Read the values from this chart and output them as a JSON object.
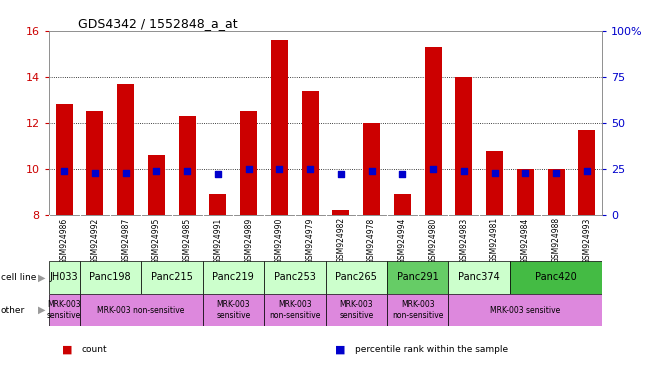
{
  "title": "GDS4342 / 1552848_a_at",
  "samples": [
    "GSM924986",
    "GSM924992",
    "GSM924987",
    "GSM924995",
    "GSM924985",
    "GSM924991",
    "GSM924989",
    "GSM924990",
    "GSM924979",
    "GSM924982",
    "GSM924978",
    "GSM924994",
    "GSM924980",
    "GSM924983",
    "GSM924981",
    "GSM924984",
    "GSM924988",
    "GSM924993"
  ],
  "counts": [
    12.8,
    12.5,
    13.7,
    10.6,
    12.3,
    8.9,
    12.5,
    15.6,
    13.4,
    8.2,
    12.0,
    8.9,
    15.3,
    14.0,
    10.8,
    10.0,
    10.0,
    11.7
  ],
  "percentiles": [
    24,
    23,
    23,
    24,
    24,
    22,
    25,
    25,
    25,
    22,
    24,
    22,
    25,
    24,
    23,
    23,
    23,
    24
  ],
  "bar_bottom": 8.0,
  "ylim_left": [
    8,
    16
  ],
  "ylim_right": [
    0,
    100
  ],
  "yticks_left": [
    8,
    10,
    12,
    14,
    16
  ],
  "yticks_right": [
    0,
    25,
    50,
    75,
    100
  ],
  "ytick_right_labels": [
    "0",
    "25",
    "50",
    "75",
    "100%"
  ],
  "bar_color": "#cc0000",
  "percentile_color": "#0000cc",
  "cell_lines": [
    {
      "name": "JH033",
      "start": 0,
      "end": 1,
      "color": "#ccffcc"
    },
    {
      "name": "Panc198",
      "start": 1,
      "end": 3,
      "color": "#ccffcc"
    },
    {
      "name": "Panc215",
      "start": 3,
      "end": 5,
      "color": "#ccffcc"
    },
    {
      "name": "Panc219",
      "start": 5,
      "end": 7,
      "color": "#ccffcc"
    },
    {
      "name": "Panc253",
      "start": 7,
      "end": 9,
      "color": "#ccffcc"
    },
    {
      "name": "Panc265",
      "start": 9,
      "end": 11,
      "color": "#ccffcc"
    },
    {
      "name": "Panc291",
      "start": 11,
      "end": 13,
      "color": "#66cc66"
    },
    {
      "name": "Panc374",
      "start": 13,
      "end": 15,
      "color": "#ccffcc"
    },
    {
      "name": "Panc420",
      "start": 15,
      "end": 18,
      "color": "#44bb44"
    }
  ],
  "other_annotations": [
    {
      "text": "MRK-003\nsensitive",
      "start": 0,
      "end": 1,
      "color": "#dd88dd"
    },
    {
      "text": "MRK-003 non-sensitive",
      "start": 1,
      "end": 5,
      "color": "#dd88dd"
    },
    {
      "text": "MRK-003\nsensitive",
      "start": 5,
      "end": 7,
      "color": "#dd88dd"
    },
    {
      "text": "MRK-003\nnon-sensitive",
      "start": 7,
      "end": 9,
      "color": "#dd88dd"
    },
    {
      "text": "MRK-003\nsensitive",
      "start": 9,
      "end": 11,
      "color": "#dd88dd"
    },
    {
      "text": "MRK-003\nnon-sensitive",
      "start": 11,
      "end": 13,
      "color": "#dd88dd"
    },
    {
      "text": "MRK-003 sensitive",
      "start": 13,
      "end": 18,
      "color": "#dd88dd"
    }
  ],
  "grid_color": "#000000",
  "bg_color": "#ffffff",
  "label_color_left": "#cc0000",
  "label_color_right": "#0000cc",
  "xticklabel_bg": "#d8d8d8",
  "legend_items": [
    {
      "label": "count",
      "color": "#cc0000"
    },
    {
      "label": "percentile rank within the sample",
      "color": "#0000cc"
    }
  ]
}
